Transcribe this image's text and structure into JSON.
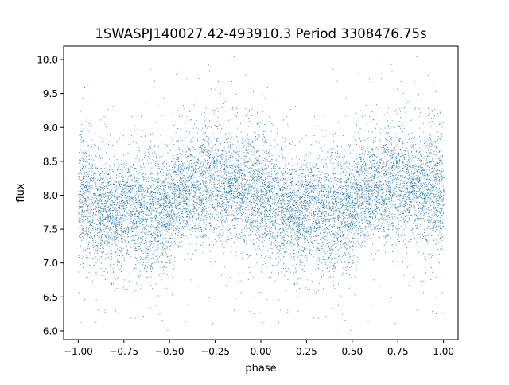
{
  "chart_data": {
    "type": "scatter",
    "title": "1SWASPJ140027.42-493910.3 Period 3308476.75s",
    "xlabel": "phase",
    "ylabel": "flux",
    "xlim": [
      -1.08,
      1.08
    ],
    "ylim": [
      5.87,
      10.2
    ],
    "x_ticks": [
      -1.0,
      -0.75,
      -0.5,
      -0.25,
      0.0,
      0.25,
      0.5,
      0.75,
      1.0
    ],
    "x_tick_labels": [
      "−1.00",
      "−0.75",
      "−0.50",
      "−0.25",
      "0.00",
      "0.25",
      "0.50",
      "0.75",
      "1.00"
    ],
    "y_ticks": [
      6.0,
      6.5,
      7.0,
      7.5,
      8.0,
      8.5,
      9.0,
      9.5,
      10.0
    ],
    "y_tick_labels": [
      "6.0",
      "6.5",
      "7.0",
      "7.5",
      "8.0",
      "8.5",
      "9.0",
      "9.5",
      "10.0"
    ],
    "grid": false,
    "legend": "none",
    "series": [
      {
        "color": "#1f77b4",
        "marker": "point",
        "phase_flux_profile": {
          "phase": [
            0.0,
            0.05,
            0.1,
            0.15,
            0.2,
            0.25,
            0.3,
            0.35,
            0.4,
            0.45,
            0.5,
            0.55,
            0.6,
            0.65,
            0.7,
            0.75,
            0.8,
            0.85,
            0.9,
            0.95,
            1.0
          ],
          "flux_mean": [
            8.0,
            7.95,
            7.85,
            7.75,
            7.75,
            7.8,
            7.8,
            7.75,
            7.75,
            7.7,
            7.85,
            8.05,
            8.1,
            8.15,
            8.2,
            8.25,
            8.15,
            8.1,
            8.1,
            8.05,
            8.0
          ],
          "flux_spread": [
            0.45,
            0.45,
            0.45,
            0.45,
            0.4,
            0.4,
            0.4,
            0.45,
            0.45,
            0.45,
            0.4,
            0.4,
            0.4,
            0.4,
            0.45,
            0.45,
            0.45,
            0.4,
            0.45,
            0.45,
            0.45
          ]
        },
        "flux_range": [
          6.0,
          10.05
        ],
        "point_count": 12000
      }
    ]
  }
}
